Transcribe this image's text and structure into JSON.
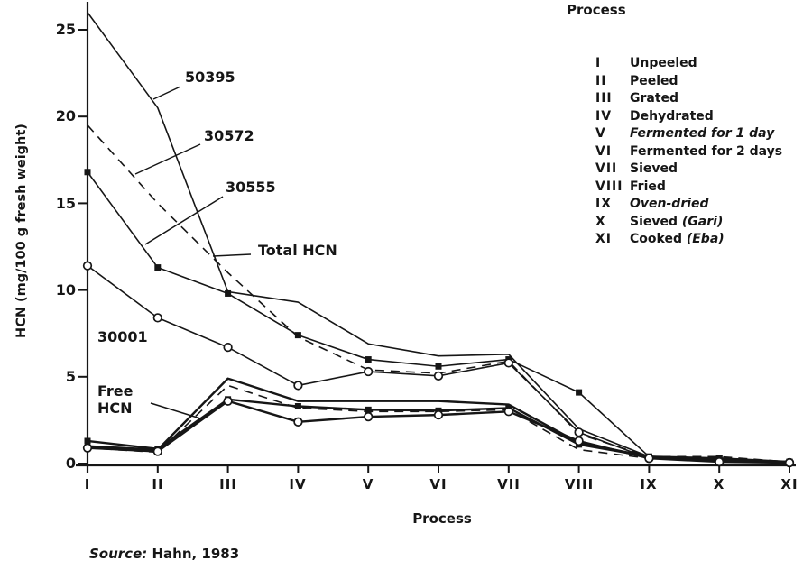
{
  "figure": {
    "y_axis": {
      "label": "HCN (mg/100 g fresh weight)",
      "ticks": [
        0,
        5,
        10,
        15,
        20,
        25
      ]
    },
    "x_axis": {
      "label": "Process",
      "ticks": [
        "I",
        "II",
        "III",
        "IV",
        "V",
        "VI",
        "VII",
        "VIII",
        "IX",
        "X",
        "XI"
      ]
    },
    "annotations": {
      "label_50395": "50395",
      "label_30572": "30572",
      "label_30555": "30555",
      "label_total": "Total HCN",
      "label_30001": "30001",
      "free_line1": "Free",
      "free_line2": "HCN"
    },
    "legend": {
      "title": "Process",
      "items": [
        {
          "numeral": "I",
          "label": "Unpeeled",
          "suffix": ""
        },
        {
          "numeral": "II",
          "label": "Peeled",
          "suffix": ""
        },
        {
          "numeral": "III",
          "label": "Grated",
          "suffix": ""
        },
        {
          "numeral": "IV",
          "label": "Dehydrated",
          "suffix": ""
        },
        {
          "numeral": "V",
          "label": "Fermented for 1 day",
          "suffix": ""
        },
        {
          "numeral": "VI",
          "label": "Fermented for 2 days",
          "suffix": ""
        },
        {
          "numeral": "VII",
          "label": "Sieved",
          "suffix": ""
        },
        {
          "numeral": "VIII",
          "label": "Fried",
          "suffix": ""
        },
        {
          "numeral": "IX",
          "label": "Oven-dried",
          "suffix": ""
        },
        {
          "numeral": "X",
          "label": "Sieved ",
          "suffix": "(Gari)"
        },
        {
          "numeral": "XI",
          "label": "Cooked ",
          "suffix": "(Eba)"
        }
      ]
    },
    "source": {
      "prefix": "Source:",
      "text": " Hahn, 1983"
    }
  },
  "chart_data": {
    "type": "line",
    "title": "",
    "xlabel": "Process",
    "ylabel": "HCN (mg/100 g fresh weight)",
    "ylim": [
      0,
      26.5
    ],
    "grid": false,
    "legend_position": "top-right",
    "categories": [
      "I",
      "II",
      "III",
      "IV",
      "V",
      "VI",
      "VII",
      "VIII",
      "IX",
      "X",
      "XI"
    ],
    "series": [
      {
        "name": "cultivar-50395-total-hcn",
        "style": "solid",
        "marker": "none",
        "width": 1.6,
        "values": [
          26.0,
          20.5,
          9.9,
          9.3,
          6.9,
          6.2,
          6.3,
          2.0,
          0.4,
          0.3,
          0.1
        ]
      },
      {
        "name": "cultivar-30572-total-hcn",
        "style": "dashed",
        "marker": "none",
        "width": 1.6,
        "values": [
          19.5,
          15.0,
          11.0,
          7.3,
          5.4,
          5.2,
          5.9,
          1.7,
          0.4,
          0.4,
          0.1
        ]
      },
      {
        "name": "cultivar-30555-total-hcn",
        "style": "solid",
        "marker": "filled-square",
        "width": 1.6,
        "values": [
          16.8,
          11.3,
          9.8,
          7.4,
          6.0,
          5.6,
          6.0,
          4.1,
          0.4,
          0.3,
          0.1
        ]
      },
      {
        "name": "cultivar-30001-total-hcn",
        "style": "solid",
        "marker": "open-circle",
        "width": 1.6,
        "values": [
          11.4,
          8.4,
          6.7,
          4.5,
          5.3,
          5.05,
          5.8,
          1.8,
          0.3,
          0.1,
          0.05
        ]
      },
      {
        "name": "cultivar-50395-free-hcn",
        "style": "solid",
        "marker": "none",
        "width": 2.4,
        "values": [
          1.0,
          0.8,
          4.9,
          3.6,
          3.6,
          3.6,
          3.4,
          1.2,
          0.4,
          0.2,
          0.1
        ]
      },
      {
        "name": "cultivar-30572-free-hcn",
        "style": "dashed",
        "marker": "none",
        "width": 1.6,
        "values": [
          0.9,
          0.65,
          4.5,
          3.2,
          3.0,
          3.0,
          3.1,
          0.8,
          0.3,
          0.2,
          0.05
        ]
      },
      {
        "name": "cultivar-30555-free-hcn",
        "style": "solid",
        "marker": "filled-square",
        "width": 2.4,
        "values": [
          1.3,
          0.85,
          3.7,
          3.3,
          3.1,
          3.05,
          3.2,
          1.1,
          0.4,
          0.3,
          0.1
        ]
      },
      {
        "name": "cultivar-30001-free-hcn",
        "style": "solid",
        "marker": "open-circle",
        "width": 2.4,
        "values": [
          0.9,
          0.7,
          3.6,
          2.4,
          2.7,
          2.8,
          3.0,
          1.3,
          0.3,
          0.1,
          0.05
        ]
      }
    ],
    "line_color": "#161616"
  }
}
